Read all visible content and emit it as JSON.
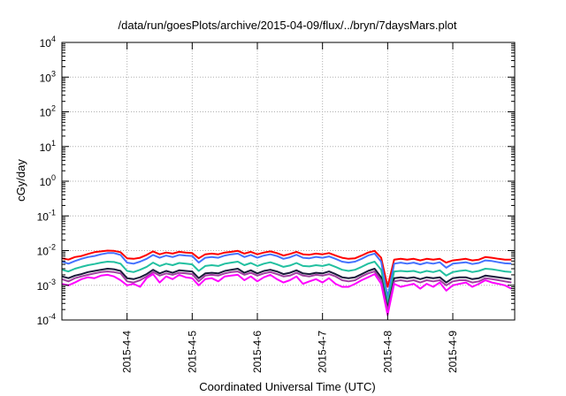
{
  "chart_data": {
    "type": "line",
    "title": "/data/run/goesPlots/archive/2015-04-09/flux/../bryn/7daysMars.plot",
    "xlabel": "Coordinated Universal Time (UTC)",
    "ylabel": "cGy/day",
    "yscale": "log",
    "ylim": [
      0.0001,
      10000
    ],
    "xlim": [
      0,
      6.95
    ],
    "grid": true,
    "x_ticks": [
      {
        "x": 1,
        "label": "2015-4-4"
      },
      {
        "x": 2,
        "label": "2015-4-5"
      },
      {
        "x": 3,
        "label": "2015-4-6"
      },
      {
        "x": 4,
        "label": "2015-4-7"
      },
      {
        "x": 5,
        "label": "2015-4-8"
      },
      {
        "x": 6,
        "label": "2015-4-9"
      }
    ],
    "y_ticks": [
      {
        "value": 0.0001,
        "base": "10",
        "exp": "-4"
      },
      {
        "value": 0.001,
        "base": "10",
        "exp": "-3"
      },
      {
        "value": 0.01,
        "base": "10",
        "exp": "-2"
      },
      {
        "value": 0.1,
        "base": "10",
        "exp": "-1"
      },
      {
        "value": 1,
        "base": "10",
        "exp": "0"
      },
      {
        "value": 10,
        "base": "10",
        "exp": "1"
      },
      {
        "value": 100,
        "base": "10",
        "exp": "2"
      },
      {
        "value": 1000,
        "base": "10",
        "exp": "3"
      },
      {
        "value": 10000,
        "base": "10",
        "exp": "4"
      }
    ],
    "x": [
      0.0,
      0.1,
      0.2,
      0.3,
      0.4,
      0.5,
      0.6,
      0.7,
      0.8,
      0.9,
      1.0,
      1.1,
      1.2,
      1.3,
      1.4,
      1.5,
      1.6,
      1.7,
      1.8,
      1.9,
      2.0,
      2.1,
      2.2,
      2.3,
      2.4,
      2.5,
      2.6,
      2.7,
      2.8,
      2.9,
      3.0,
      3.1,
      3.2,
      3.3,
      3.4,
      3.5,
      3.6,
      3.7,
      3.8,
      3.9,
      4.0,
      4.1,
      4.2,
      4.3,
      4.4,
      4.5,
      4.6,
      4.7,
      4.8,
      4.9,
      5.0,
      5.1,
      5.2,
      5.3,
      5.4,
      5.5,
      5.6,
      5.7,
      5.8,
      5.9,
      6.0,
      6.1,
      6.2,
      6.3,
      6.4,
      6.5,
      6.6,
      6.7,
      6.8,
      6.9
    ],
    "series": [
      {
        "color": "#ff0000",
        "values": [
          0.006,
          0.0055,
          0.0065,
          0.007,
          0.008,
          0.009,
          0.0095,
          0.01,
          0.0098,
          0.009,
          0.006,
          0.0058,
          0.0062,
          0.0075,
          0.0095,
          0.0078,
          0.0088,
          0.0082,
          0.0092,
          0.0088,
          0.0085,
          0.006,
          0.0078,
          0.0082,
          0.0078,
          0.0088,
          0.0092,
          0.0098,
          0.0082,
          0.0092,
          0.0078,
          0.0088,
          0.0095,
          0.0085,
          0.0072,
          0.008,
          0.0092,
          0.0078,
          0.0076,
          0.0082,
          0.0078,
          0.0085,
          0.0072,
          0.0062,
          0.0058,
          0.006,
          0.0072,
          0.0088,
          0.0098,
          0.0062,
          0.0009,
          0.0055,
          0.0058,
          0.0055,
          0.0058,
          0.0052,
          0.0058,
          0.0055,
          0.0058,
          0.0045,
          0.0052,
          0.0055,
          0.0058,
          0.0052,
          0.0055,
          0.0065,
          0.0062,
          0.0058,
          0.0055,
          0.0055
        ]
      },
      {
        "color": "#4472ff",
        "values": [
          0.0048,
          0.0042,
          0.005,
          0.0058,
          0.0065,
          0.007,
          0.0078,
          0.0085,
          0.0085,
          0.0075,
          0.0045,
          0.0042,
          0.0048,
          0.0058,
          0.0075,
          0.0062,
          0.0072,
          0.0065,
          0.0075,
          0.0072,
          0.007,
          0.0045,
          0.0062,
          0.0065,
          0.0062,
          0.0072,
          0.0078,
          0.0082,
          0.0065,
          0.0075,
          0.0062,
          0.0072,
          0.0078,
          0.007,
          0.0058,
          0.0064,
          0.0076,
          0.0062,
          0.006,
          0.0066,
          0.0062,
          0.0068,
          0.0058,
          0.0048,
          0.0045,
          0.0048,
          0.0058,
          0.0072,
          0.0082,
          0.0048,
          0.00045,
          0.0042,
          0.0045,
          0.0042,
          0.0045,
          0.004,
          0.0045,
          0.0042,
          0.0046,
          0.0032,
          0.0042,
          0.0044,
          0.0046,
          0.0041,
          0.0044,
          0.0052,
          0.005,
          0.0046,
          0.0043,
          0.0042
        ]
      },
      {
        "color": "#22c0a0",
        "values": [
          0.0028,
          0.0025,
          0.003,
          0.0034,
          0.0038,
          0.0041,
          0.0045,
          0.0048,
          0.0047,
          0.0042,
          0.0026,
          0.0024,
          0.0028,
          0.0034,
          0.0045,
          0.0036,
          0.0042,
          0.0038,
          0.0044,
          0.0042,
          0.004,
          0.0026,
          0.0036,
          0.0038,
          0.0036,
          0.0042,
          0.0045,
          0.0048,
          0.0038,
          0.0044,
          0.0036,
          0.0042,
          0.0046,
          0.004,
          0.0034,
          0.0037,
          0.0044,
          0.0036,
          0.0035,
          0.0038,
          0.0036,
          0.004,
          0.0034,
          0.0028,
          0.0026,
          0.0028,
          0.0034,
          0.0042,
          0.0048,
          0.0028,
          0.00032,
          0.0025,
          0.0026,
          0.0025,
          0.0026,
          0.0023,
          0.0026,
          0.0024,
          0.0027,
          0.0019,
          0.0024,
          0.0026,
          0.0027,
          0.0024,
          0.0026,
          0.003,
          0.0029,
          0.0027,
          0.0025,
          0.0024
        ]
      },
      {
        "color": "#1a1a3a",
        "values": [
          0.0018,
          0.0016,
          0.0019,
          0.0021,
          0.0024,
          0.0026,
          0.0028,
          0.003,
          0.0029,
          0.0026,
          0.0016,
          0.0015,
          0.0017,
          0.0021,
          0.0028,
          0.0022,
          0.0026,
          0.0023,
          0.0027,
          0.0026,
          0.0025,
          0.0016,
          0.0022,
          0.0023,
          0.0022,
          0.0026,
          0.0028,
          0.003,
          0.0023,
          0.0027,
          0.0022,
          0.0026,
          0.0028,
          0.0025,
          0.0021,
          0.0023,
          0.0027,
          0.0022,
          0.0021,
          0.0023,
          0.0022,
          0.0025,
          0.0021,
          0.0017,
          0.0016,
          0.0017,
          0.0021,
          0.0026,
          0.003,
          0.0017,
          0.00022,
          0.0016,
          0.0017,
          0.0016,
          0.0017,
          0.0015,
          0.0017,
          0.0016,
          0.0017,
          0.0012,
          0.0016,
          0.0017,
          0.0017,
          0.0015,
          0.0016,
          0.0019,
          0.0018,
          0.0017,
          0.0016,
          0.0015
        ]
      },
      {
        "color": "#a040a0",
        "values": [
          0.0015,
          0.0013,
          0.0016,
          0.0018,
          0.002,
          0.0022,
          0.0024,
          0.0025,
          0.0024,
          0.0022,
          0.0013,
          0.0012,
          0.0014,
          0.0018,
          0.0024,
          0.0019,
          0.0022,
          0.002,
          0.0023,
          0.0022,
          0.0021,
          0.0013,
          0.0019,
          0.002,
          0.0019,
          0.0022,
          0.0024,
          0.0025,
          0.002,
          0.0023,
          0.0019,
          0.0022,
          0.0024,
          0.0021,
          0.0018,
          0.0019,
          0.0023,
          0.0019,
          0.0018,
          0.002,
          0.0019,
          0.0021,
          0.0018,
          0.0014,
          0.0013,
          0.0014,
          0.0018,
          0.0022,
          0.0025,
          0.0014,
          0.00018,
          0.0013,
          0.0014,
          0.0013,
          0.0014,
          0.0012,
          0.0014,
          0.0013,
          0.0014,
          0.001,
          0.0013,
          0.0014,
          0.0014,
          0.0012,
          0.0013,
          0.0016,
          0.0015,
          0.0014,
          0.0013,
          0.0012
        ]
      },
      {
        "color": "#ff00ff",
        "values": [
          0.0011,
          0.001,
          0.0012,
          0.0015,
          0.0017,
          0.0016,
          0.0019,
          0.002,
          0.0018,
          0.0014,
          0.001,
          0.0011,
          0.0009,
          0.0016,
          0.0021,
          0.0012,
          0.0018,
          0.0015,
          0.002,
          0.0017,
          0.0016,
          0.001,
          0.0015,
          0.0016,
          0.0013,
          0.0018,
          0.0019,
          0.002,
          0.0014,
          0.0018,
          0.0013,
          0.0017,
          0.002,
          0.0015,
          0.0012,
          0.0014,
          0.0018,
          0.0011,
          0.0013,
          0.0015,
          0.0012,
          0.0016,
          0.0011,
          0.0009,
          0.0009,
          0.0011,
          0.0014,
          0.0017,
          0.0021,
          0.0011,
          0.00014,
          0.0011,
          0.0009,
          0.001,
          0.0011,
          0.0008,
          0.0011,
          0.0009,
          0.0012,
          0.0007,
          0.001,
          0.0011,
          0.0012,
          0.0009,
          0.0011,
          0.0014,
          0.0012,
          0.0011,
          0.001,
          0.0008
        ]
      }
    ]
  }
}
